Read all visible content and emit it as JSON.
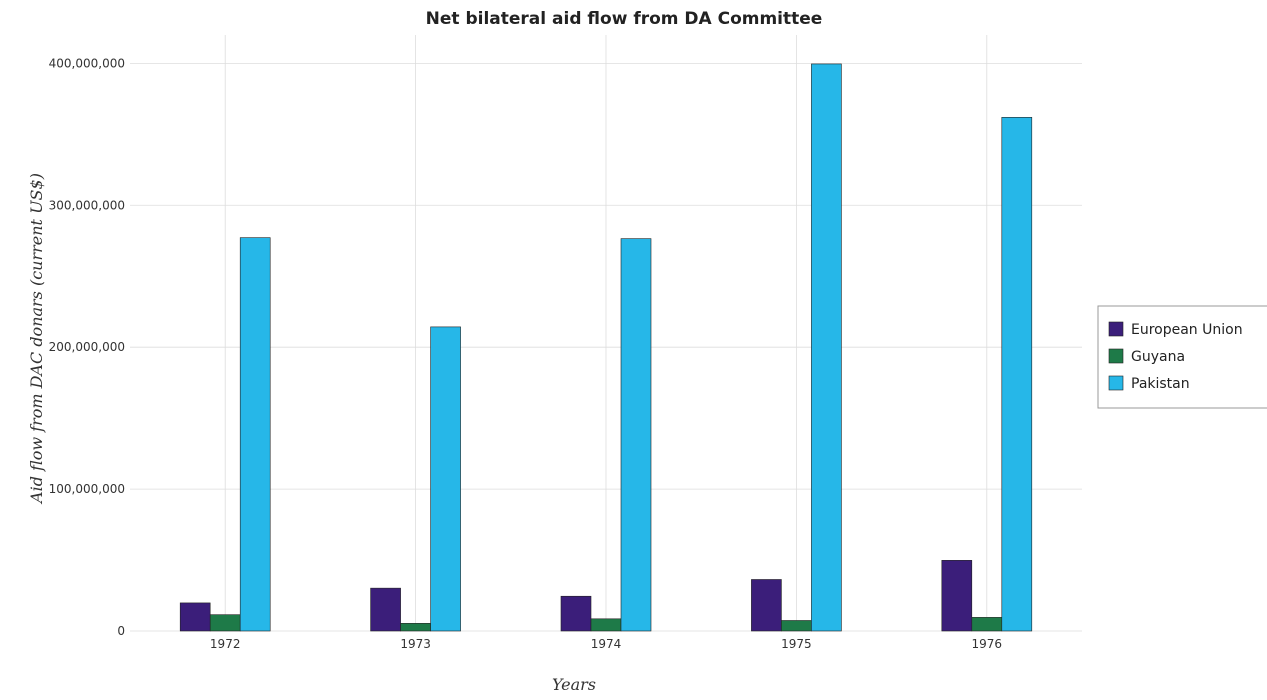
{
  "chart_data": {
    "type": "bar",
    "title": "Net bilateral aid flow from DA Committee",
    "xlabel": "Years",
    "ylabel": "Aid flow from DAC donars (current US$)",
    "categories": [
      "1972",
      "1973",
      "1974",
      "1975",
      "1976"
    ],
    "ylim": [
      0,
      420000000
    ],
    "yticks": [
      0,
      100000000,
      200000000,
      300000000,
      400000000
    ],
    "ytick_labels": [
      "0",
      "100,000,000",
      "200,000,000",
      "300,000,000",
      "400,000,000"
    ],
    "grid": true,
    "legend_position": "right",
    "series": [
      {
        "name": "European Union",
        "color": "#3b1e7a",
        "values": [
          19800000,
          30200000,
          24500000,
          36300000,
          49800000
        ]
      },
      {
        "name": "Guyana",
        "color": "#1e7a48",
        "values": [
          11500000,
          5400000,
          8600000,
          7400000,
          9600000
        ]
      },
      {
        "name": "Pakistan",
        "color": "#26b7e8",
        "values": [
          277200000,
          214300000,
          276500000,
          399600000,
          362000000
        ]
      }
    ]
  }
}
